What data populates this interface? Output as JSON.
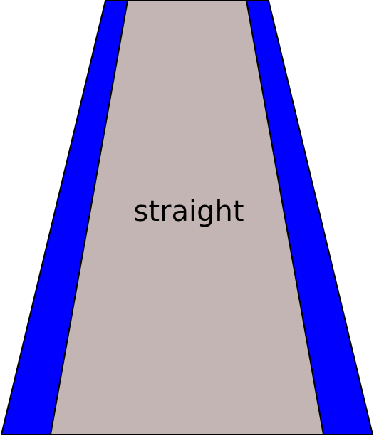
{
  "road": {
    "label": "straight",
    "colors": {
      "edge": "#0000ff",
      "surface": "#c4b5b5",
      "outline": "#000000",
      "text": "#000000"
    }
  }
}
